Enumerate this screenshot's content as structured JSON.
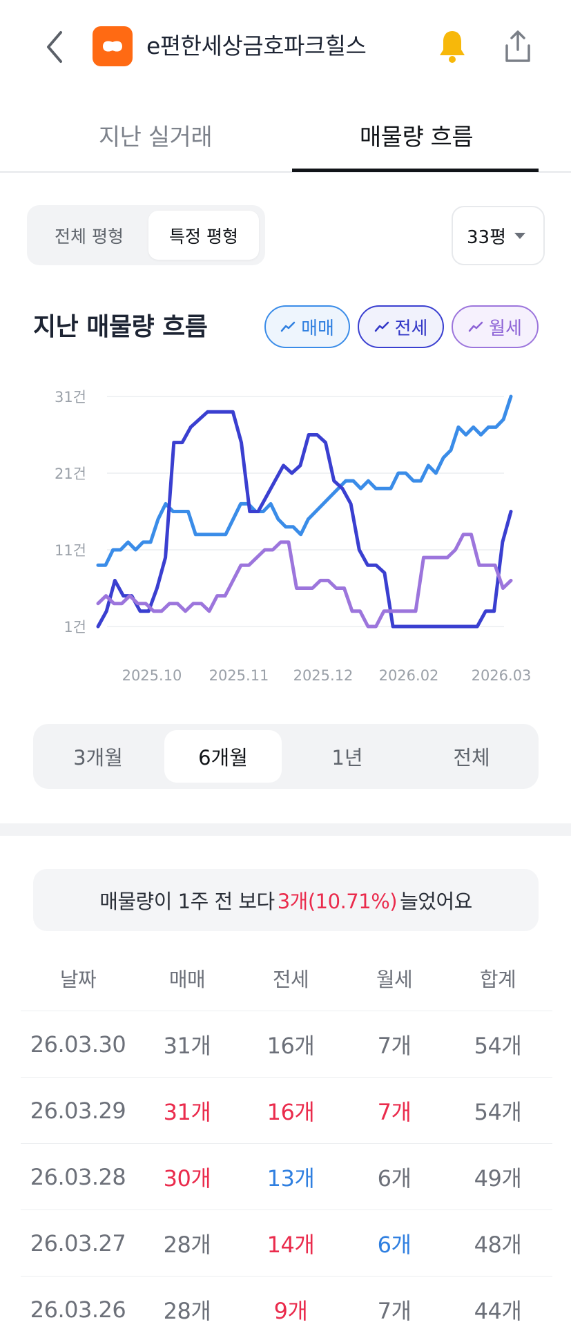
{
  "header": {
    "title": "e편한세상금호파크힐스",
    "back_icon": "chevron-left-icon",
    "logo_icon": "app-logo-icon",
    "bell_icon": "bell-icon",
    "share_icon": "share-icon",
    "accent": "#ff6a13",
    "bell_color": "#f7b80a"
  },
  "tabs": [
    {
      "label": "지난 실거래",
      "active": false
    },
    {
      "label": "매물량 흐름",
      "active": true
    }
  ],
  "pyeong_segment": {
    "options": [
      "전체 평형",
      "특정 평형"
    ],
    "selected": "특정 평형"
  },
  "size_select": {
    "value": "33평",
    "icon": "caret-down-icon"
  },
  "section_title": "지난 매물량 흐름",
  "legend": [
    {
      "label": "매매",
      "color": "#3a8ce8"
    },
    {
      "label": "전세",
      "color": "#3a3fd0"
    },
    {
      "label": "월세",
      "color": "#9c75dc"
    }
  ],
  "chart_data": {
    "type": "line",
    "y_ticks": [
      "31건",
      "21건",
      "11건",
      "1건"
    ],
    "ylim": [
      1,
      31
    ],
    "x_ticks": [
      "2025.10",
      "2025.11",
      "2025.12",
      "2026.02",
      "2026.03"
    ],
    "grid": true,
    "series": [
      {
        "name": "매매",
        "color": "#3a8ce8",
        "values": [
          9,
          9,
          11,
          11,
          12,
          11,
          12,
          12,
          15,
          17,
          16,
          16,
          16,
          13,
          13,
          13,
          13,
          13,
          15,
          17,
          17,
          16,
          16,
          17,
          15,
          14,
          14,
          13,
          15,
          16,
          17,
          18,
          19,
          20,
          20,
          19,
          20,
          19,
          19,
          19,
          21,
          21,
          20,
          20,
          22,
          21,
          23,
          24,
          27,
          26,
          27,
          26,
          27,
          27,
          28,
          31
        ]
      },
      {
        "name": "전세",
        "color": "#3a3fd0",
        "values": [
          1,
          3,
          7,
          5,
          5,
          3,
          3,
          6,
          10,
          25,
          25,
          27,
          28,
          29,
          29,
          29,
          29,
          25,
          16,
          16,
          18,
          20,
          22,
          21,
          22,
          26,
          26,
          25,
          20,
          19,
          17,
          11,
          9,
          9,
          8,
          1,
          1,
          1,
          1,
          1,
          1,
          1,
          1,
          1,
          1,
          1,
          3,
          3,
          12,
          16
        ]
      },
      {
        "name": "월세",
        "color": "#9c75dc",
        "values": [
          4,
          5,
          4,
          4,
          5,
          4,
          4,
          3,
          3,
          4,
          4,
          3,
          4,
          4,
          3,
          5,
          5,
          7,
          9,
          9,
          10,
          11,
          11,
          12,
          12,
          6,
          6,
          6,
          7,
          7,
          6,
          6,
          3,
          3,
          1,
          1,
          3,
          3,
          3,
          3,
          3,
          10,
          10,
          10,
          10,
          11,
          13,
          13,
          9,
          9,
          9,
          6,
          7
        ]
      }
    ]
  },
  "range_segment": {
    "options": [
      "3개월",
      "6개월",
      "1년",
      "전체"
    ],
    "selected": "6개월"
  },
  "summary": {
    "prefix": "매물량이 1주 전 보다",
    "highlight": "3개(10.71%)",
    "suffix": "늘었어요"
  },
  "table": {
    "headers": [
      "날짜",
      "매매",
      "전세",
      "월세",
      "합계"
    ],
    "rows": [
      {
        "date": "26.03.30",
        "sale": "31개",
        "jeonse": "16개",
        "wolse": "7개",
        "total": "54개",
        "sale_c": "",
        "jeonse_c": "",
        "wolse_c": ""
      },
      {
        "date": "26.03.29",
        "sale": "31개",
        "jeonse": "16개",
        "wolse": "7개",
        "total": "54개",
        "sale_c": "red",
        "jeonse_c": "red",
        "wolse_c": "red"
      },
      {
        "date": "26.03.28",
        "sale": "30개",
        "jeonse": "13개",
        "wolse": "6개",
        "total": "49개",
        "sale_c": "red",
        "jeonse_c": "blue",
        "wolse_c": ""
      },
      {
        "date": "26.03.27",
        "sale": "28개",
        "jeonse": "14개",
        "wolse": "6개",
        "total": "48개",
        "sale_c": "",
        "jeonse_c": "red",
        "wolse_c": "blue"
      },
      {
        "date": "26.03.26",
        "sale": "28개",
        "jeonse": "9개",
        "wolse": "7개",
        "total": "44개",
        "sale_c": "",
        "jeonse_c": "red",
        "wolse_c": ""
      }
    ]
  }
}
